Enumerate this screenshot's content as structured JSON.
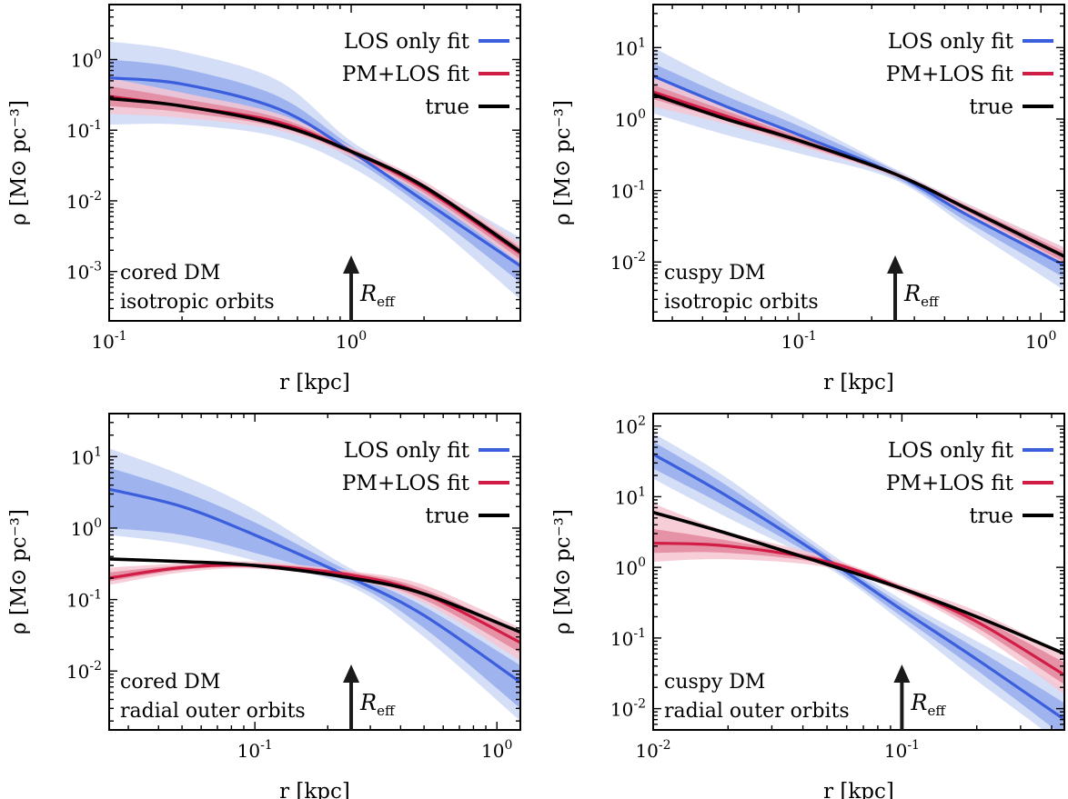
{
  "colors": {
    "los": "#3b5fdc",
    "pm": "#d11c45",
    "true": "#000000",
    "arrow": "#1a1a1a"
  },
  "legend": {
    "los": "LOS only fit",
    "pm": "PM+LOS fit",
    "true": "true"
  },
  "chart_data": [
    {
      "type": "line",
      "xscale": "log",
      "yscale": "log",
      "xlim": [
        0.1,
        5.0
      ],
      "ylim": [
        0.0002,
        6.0
      ],
      "xlabel": "r [kpc]",
      "ylabel": "ρ [M⊙ pc⁻³]",
      "xticks": [
        0.1,
        1
      ],
      "yticks": [
        0.001,
        0.01,
        0.1,
        1
      ],
      "annotation": [
        "cored DM",
        "isotropic orbits"
      ],
      "r_eff": 1.0,
      "reff_label": "R_eff",
      "series": [
        {
          "name": "LOS only fit",
          "x": [
            0.1,
            0.2,
            0.5,
            1,
            2,
            5
          ],
          "y": [
            0.55,
            0.45,
            0.2,
            0.05,
            0.01,
            0.0012
          ],
          "band1": [
            [
              0.3,
              1.0
            ],
            [
              0.25,
              0.75
            ],
            [
              0.12,
              0.3
            ],
            [
              0.04,
              0.06
            ],
            [
              0.008,
              0.014
            ],
            [
              0.0007,
              0.002
            ]
          ],
          "band2": [
            [
              0.12,
              1.8
            ],
            [
              0.12,
              1.3
            ],
            [
              0.08,
              0.5
            ],
            [
              0.03,
              0.07
            ],
            [
              0.006,
              0.018
            ],
            [
              0.0004,
              0.003
            ]
          ]
        },
        {
          "name": "PM+LOS fit",
          "x": [
            0.1,
            0.2,
            0.5,
            1,
            2,
            5
          ],
          "y": [
            0.3,
            0.22,
            0.13,
            0.05,
            0.015,
            0.0018
          ],
          "band1": [
            [
              0.22,
              0.42
            ],
            [
              0.18,
              0.28
            ],
            [
              0.11,
              0.15
            ],
            [
              0.045,
              0.055
            ],
            [
              0.013,
              0.017
            ],
            [
              0.0015,
              0.0022
            ]
          ],
          "band2": [
            [
              0.17,
              0.55
            ],
            [
              0.15,
              0.34
            ],
            [
              0.1,
              0.17
            ],
            [
              0.042,
              0.058
            ],
            [
              0.012,
              0.019
            ],
            [
              0.0013,
              0.0025
            ]
          ]
        },
        {
          "name": "true",
          "x": [
            0.1,
            0.2,
            0.5,
            1,
            2,
            5
          ],
          "y": [
            0.28,
            0.22,
            0.12,
            0.05,
            0.016,
            0.0019
          ]
        }
      ]
    },
    {
      "type": "line",
      "xscale": "log",
      "yscale": "log",
      "xlim": [
        0.025,
        1.25
      ],
      "ylim": [
        0.0015,
        40.0
      ],
      "xlabel": "r [kpc]",
      "ylabel": "ρ [M⊙ pc⁻³]",
      "xticks": [
        0.1,
        1
      ],
      "yticks": [
        0.01,
        0.1,
        1,
        10
      ],
      "annotation": [
        "cuspy DM",
        "isotropic orbits"
      ],
      "r_eff": 0.25,
      "reff_label": "R_eff",
      "series": [
        {
          "name": "LOS only fit",
          "x": [
            0.025,
            0.05,
            0.1,
            0.25,
            0.5,
            1.25
          ],
          "y": [
            4.0,
            1.5,
            0.6,
            0.17,
            0.045,
            0.009
          ],
          "band1": [
            [
              2.5,
              6.0
            ],
            [
              1.0,
              2.1
            ],
            [
              0.45,
              0.8
            ],
            [
              0.15,
              0.19
            ],
            [
              0.036,
              0.055
            ],
            [
              0.006,
              0.012
            ]
          ],
          "band2": [
            [
              1.2,
              10.0
            ],
            [
              0.6,
              3.0
            ],
            [
              0.33,
              1.0
            ],
            [
              0.14,
              0.2
            ],
            [
              0.03,
              0.065
            ],
            [
              0.004,
              0.016
            ]
          ]
        },
        {
          "name": "PM+LOS fit",
          "x": [
            0.025,
            0.05,
            0.1,
            0.25,
            0.5,
            1.25
          ],
          "y": [
            2.4,
            1.1,
            0.5,
            0.17,
            0.055,
            0.012
          ],
          "band1": [
            [
              1.9,
              3.0
            ],
            [
              0.95,
              1.3
            ],
            [
              0.45,
              0.56
            ],
            [
              0.16,
              0.18
            ],
            [
              0.05,
              0.06
            ],
            [
              0.01,
              0.014
            ]
          ],
          "band2": [
            [
              1.5,
              3.8
            ],
            [
              0.85,
              1.5
            ],
            [
              0.42,
              0.6
            ],
            [
              0.155,
              0.185
            ],
            [
              0.047,
              0.064
            ],
            [
              0.009,
              0.016
            ]
          ]
        },
        {
          "name": "true",
          "x": [
            0.025,
            0.05,
            0.1,
            0.25,
            0.5,
            1.25
          ],
          "y": [
            2.2,
            1.0,
            0.5,
            0.17,
            0.055,
            0.012
          ]
        }
      ]
    },
    {
      "type": "line",
      "xscale": "log",
      "yscale": "log",
      "xlim": [
        0.025,
        1.25
      ],
      "ylim": [
        0.0015,
        40.0
      ],
      "xlabel": "r [kpc]",
      "ylabel": "ρ [M⊙ pc⁻³]",
      "xticks": [
        0.1,
        1
      ],
      "yticks": [
        0.01,
        0.1,
        1,
        10
      ],
      "annotation": [
        "cored DM",
        "radial outer orbits"
      ],
      "r_eff": 0.25,
      "reff_label": "R_eff",
      "series": [
        {
          "name": "LOS only fit",
          "x": [
            0.025,
            0.05,
            0.1,
            0.25,
            0.5,
            1.25
          ],
          "y": [
            3.5,
            2.0,
            0.8,
            0.2,
            0.06,
            0.007
          ],
          "band1": [
            [
              1.0,
              7.0
            ],
            [
              0.8,
              3.3
            ],
            [
              0.45,
              1.2
            ],
            [
              0.17,
              0.24
            ],
            [
              0.04,
              0.08
            ],
            [
              0.003,
              0.012
            ]
          ],
          "band2": [
            [
              0.8,
              13.0
            ],
            [
              0.6,
              5.5
            ],
            [
              0.35,
              1.8
            ],
            [
              0.15,
              0.27
            ],
            [
              0.03,
              0.1
            ],
            [
              0.002,
              0.018
            ]
          ]
        },
        {
          "name": "PM+LOS fit",
          "x": [
            0.025,
            0.05,
            0.1,
            0.25,
            0.5,
            1.25
          ],
          "y": [
            0.2,
            0.28,
            0.3,
            0.22,
            0.12,
            0.025
          ],
          "band1": [
            [
              0.18,
              0.24
            ],
            [
              0.26,
              0.3
            ],
            [
              0.28,
              0.32
            ],
            [
              0.2,
              0.24
            ],
            [
              0.1,
              0.14
            ],
            [
              0.018,
              0.034
            ]
          ],
          "band2": [
            [
              0.16,
              0.28
            ],
            [
              0.24,
              0.32
            ],
            [
              0.27,
              0.34
            ],
            [
              0.19,
              0.25
            ],
            [
              0.09,
              0.16
            ],
            [
              0.014,
              0.04
            ]
          ]
        },
        {
          "name": "true",
          "x": [
            0.025,
            0.05,
            0.1,
            0.25,
            0.5,
            1.25
          ],
          "y": [
            0.37,
            0.34,
            0.3,
            0.2,
            0.12,
            0.035
          ]
        }
      ]
    },
    {
      "type": "line",
      "xscale": "log",
      "yscale": "log",
      "xlim": [
        0.01,
        0.45
      ],
      "ylim": [
        0.005,
        150.0
      ],
      "xlabel": "r [kpc]",
      "ylabel": "ρ [M⊙ pc⁻³]",
      "xticks": [
        0.01,
        0.1
      ],
      "yticks": [
        0.01,
        0.1,
        1,
        10,
        100
      ],
      "annotation": [
        "cuspy DM",
        "radial outer orbits"
      ],
      "r_eff": 0.1,
      "reff_label": "R_eff",
      "series": [
        {
          "name": "LOS only fit",
          "x": [
            0.01,
            0.02,
            0.05,
            0.1,
            0.2,
            0.45
          ],
          "y": [
            40,
            10,
            1.3,
            0.25,
            0.05,
            0.007
          ],
          "band1": [
            [
              25,
              60
            ],
            [
              7,
              14
            ],
            [
              1.1,
              1.5
            ],
            [
              0.2,
              0.3
            ],
            [
              0.035,
              0.07
            ],
            [
              0.004,
              0.012
            ]
          ],
          "band2": [
            [
              18,
              80
            ],
            [
              5,
              18
            ],
            [
              1.0,
              1.7
            ],
            [
              0.17,
              0.35
            ],
            [
              0.025,
              0.09
            ],
            [
              0.003,
              0.02
            ]
          ]
        },
        {
          "name": "PM+LOS fit",
          "x": [
            0.01,
            0.02,
            0.05,
            0.1,
            0.2,
            0.45
          ],
          "y": [
            2.2,
            2.0,
            1.2,
            0.5,
            0.17,
            0.03
          ],
          "band1": [
            [
              1.6,
              3.5
            ],
            [
              1.6,
              2.4
            ],
            [
              1.1,
              1.3
            ],
            [
              0.47,
              0.54
            ],
            [
              0.14,
              0.2
            ],
            [
              0.022,
              0.045
            ]
          ],
          "band2": [
            [
              1.2,
              8.0
            ],
            [
              1.3,
              3.2
            ],
            [
              1.0,
              1.4
            ],
            [
              0.44,
              0.57
            ],
            [
              0.12,
              0.24
            ],
            [
              0.016,
              0.06
            ]
          ]
        },
        {
          "name": "true",
          "x": [
            0.01,
            0.02,
            0.05,
            0.1,
            0.2,
            0.45
          ],
          "y": [
            6.0,
            3.0,
            1.1,
            0.5,
            0.2,
            0.06
          ]
        }
      ]
    }
  ]
}
